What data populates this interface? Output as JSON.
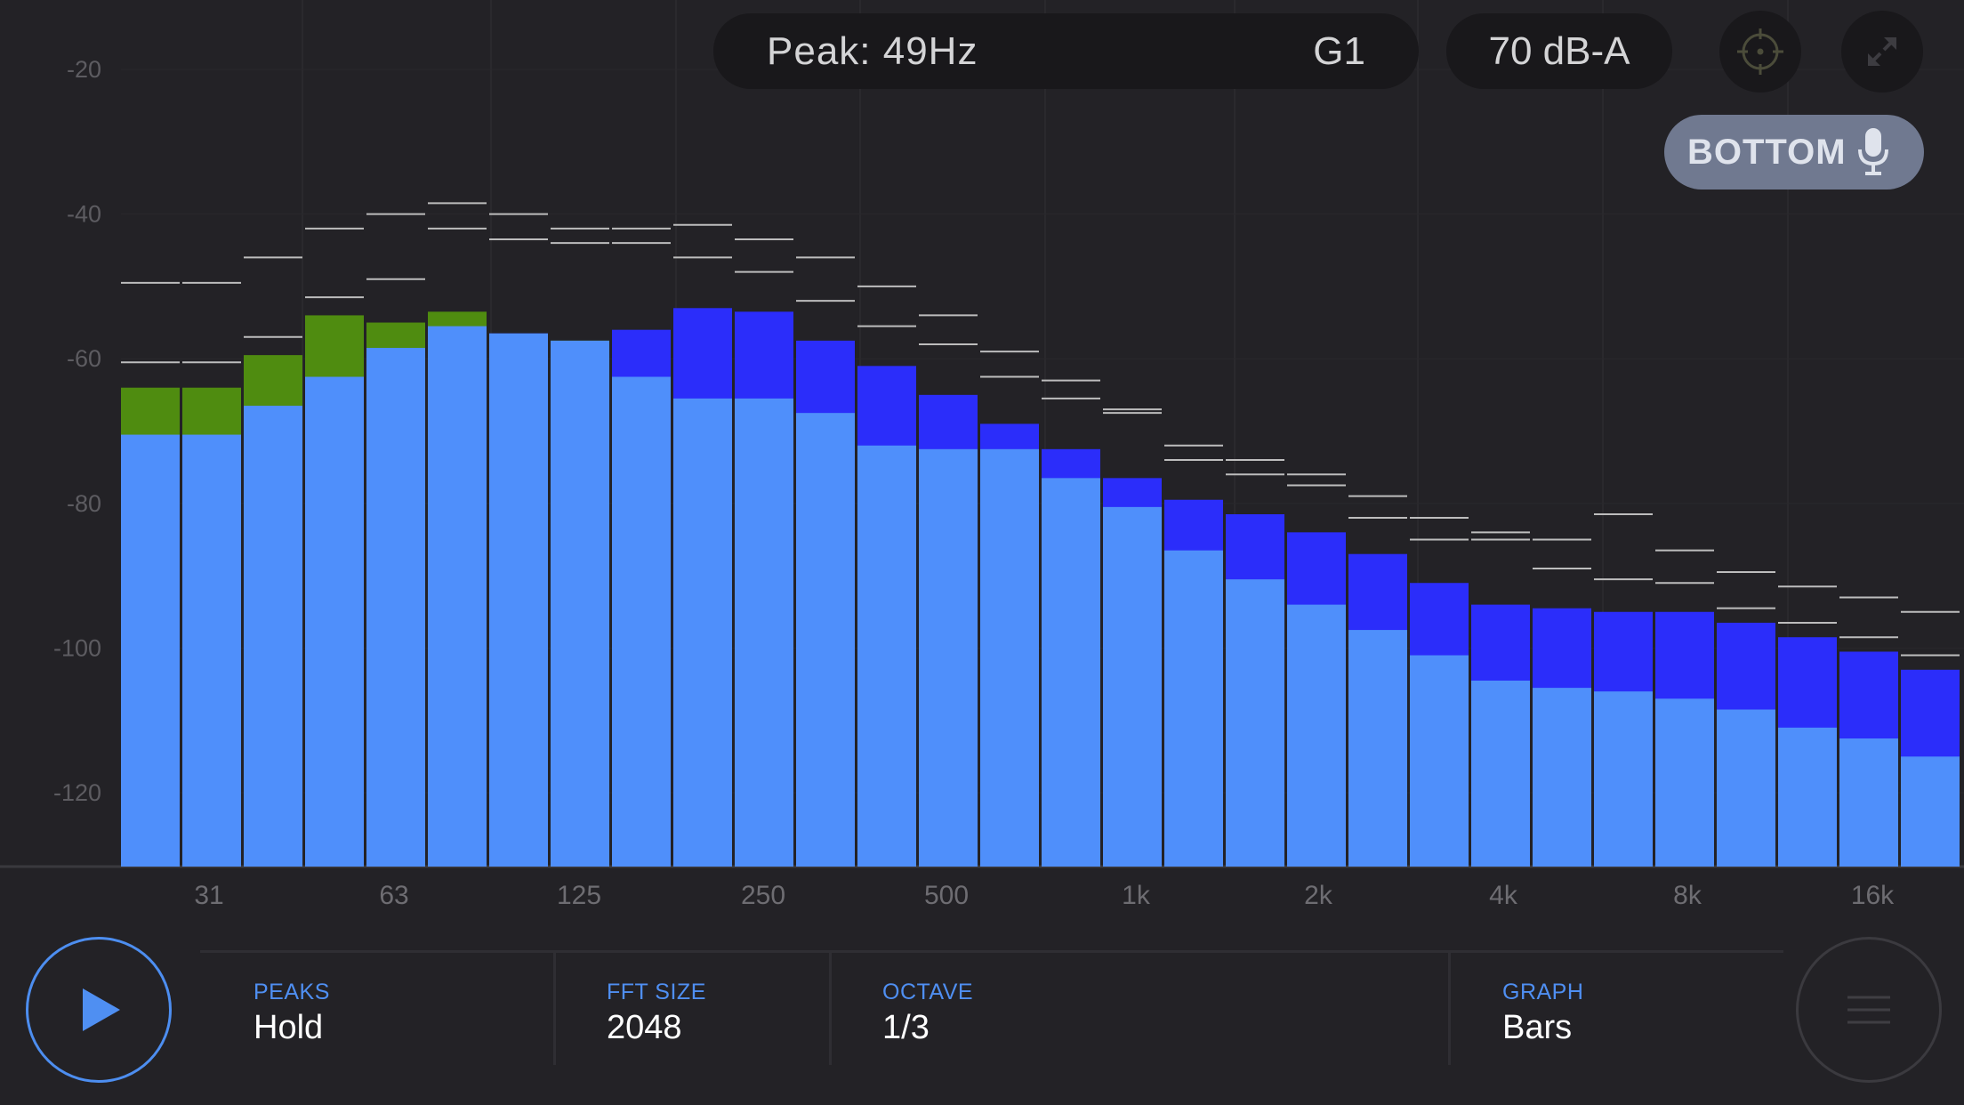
{
  "header": {
    "peak_text": "Peak: 49Hz",
    "peak_note": "G1",
    "level_text": "70 dB-A",
    "mic_label": "BOTTOM"
  },
  "icons": {
    "target": "crosshair-target-icon",
    "expand": "expand-arrows-icon",
    "mic": "microphone-icon",
    "play": "play-icon",
    "menu": "hamburger-menu-icon"
  },
  "controls": {
    "peaks": {
      "label": "PEAKS",
      "value": "Hold"
    },
    "fft_size": {
      "label": "FFT SIZE",
      "value": "2048"
    },
    "octave": {
      "label": "OCTAVE",
      "value": "1/3"
    },
    "graph": {
      "label": "GRAPH",
      "value": "Bars"
    }
  },
  "colors": {
    "background": "#232226",
    "bar_current": "#4f8ffb",
    "bar_max": "#2b2dfa",
    "bar_over": "#4f8c10",
    "peak_marker": "#bdbdbd",
    "accent": "#4f8ff2",
    "mic_pill": "#707990"
  },
  "chart_data": {
    "type": "bar",
    "y_ticks": [
      "-20",
      "-40",
      "-60",
      "-80",
      "-100",
      "-120"
    ],
    "x_ticks": [
      "31",
      "63",
      "125",
      "250",
      "500",
      "1k",
      "2k",
      "4k",
      "8k",
      "16k"
    ],
    "ylim": [
      -130,
      -20
    ],
    "grid": true,
    "series": [
      {
        "values": [
          -70.5,
          -70.5,
          -66.5,
          -62.5,
          -58.5,
          -55.5,
          -56.5,
          -57.5,
          -62.5,
          -65.5,
          -65.5,
          -67.5,
          -72,
          -72.5,
          -72.5,
          -76.5,
          -80.5,
          -86.5,
          -90.5,
          -94,
          -97.5,
          -101,
          -104.5,
          -105.5,
          -106,
          -107,
          -108.5,
          -111,
          -112.5,
          -115
        ]
      },
      {
        "values": [
          -70.5,
          -70.5,
          -66.5,
          -62.5,
          -58.5,
          -56,
          -56.5,
          -58,
          -56,
          -53,
          -53.5,
          -57.5,
          -61,
          -65,
          -69,
          -72.5,
          -76.5,
          -79.5,
          -81.5,
          -84,
          -87,
          -91,
          -94,
          -94.5,
          -95,
          -95,
          -96.5,
          -98.5,
          -100.5,
          -103
        ]
      },
      {
        "values": [
          -64,
          -64,
          -59.5,
          -54,
          -55,
          -53.5,
          null,
          -57.5,
          null,
          null,
          null,
          null,
          null,
          null,
          null,
          null,
          null,
          null,
          null,
          null,
          null,
          null,
          null,
          null,
          null,
          null,
          null,
          null,
          null,
          null
        ]
      }
    ],
    "peak_markers_upper": [
      -49.5,
      -49.5,
      -46,
      -42,
      -40,
      -38.5,
      -40,
      -42,
      -42,
      -41.5,
      -43.5,
      -46,
      -50,
      -54,
      -59,
      -63,
      -67.5,
      -72,
      -74,
      -76,
      -79,
      -82,
      -84,
      -85,
      -81.5,
      -86.5,
      -89.5,
      -91.5,
      -93,
      -95
    ],
    "peak_markers_lower": [
      -60.5,
      -60.5,
      -57,
      -51.5,
      -49,
      -42,
      -43.5,
      -44,
      -44,
      -46,
      -48,
      -52,
      -55.5,
      -58,
      -62.5,
      -65.5,
      -67,
      -74,
      -76,
      -77.5,
      -82,
      -85,
      -85,
      -89,
      -90.5,
      -91,
      -94.5,
      -96.5,
      -98.5,
      -101
    ]
  }
}
